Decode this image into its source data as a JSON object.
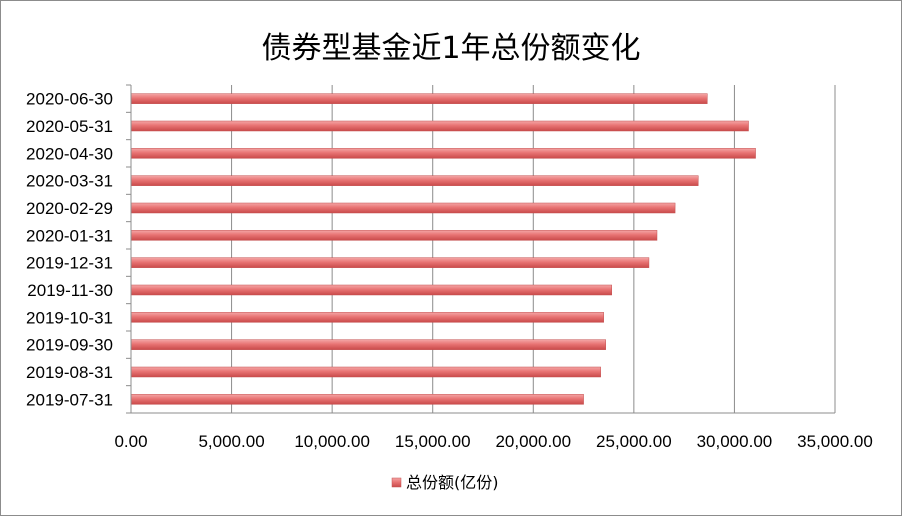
{
  "chart_data": {
    "type": "bar",
    "orientation": "horizontal",
    "title": "债券型基金近1年总份额变化",
    "categories": [
      "2020-06-30",
      "2020-05-31",
      "2020-04-30",
      "2020-03-31",
      "2020-02-29",
      "2020-01-31",
      "2019-12-31",
      "2019-11-30",
      "2019-10-31",
      "2019-09-30",
      "2019-08-31",
      "2019-07-31"
    ],
    "series": [
      {
        "name": "总份额(亿份)",
        "color": "#e06666",
        "values": [
          28650,
          30700,
          31050,
          28200,
          27050,
          26150,
          25750,
          23900,
          23500,
          23600,
          23350,
          22500
        ]
      }
    ],
    "xlim": [
      0,
      35000
    ],
    "xticks": [
      "0.00",
      "5,000.00",
      "10,000.00",
      "15,000.00",
      "20,000.00",
      "25,000.00",
      "30,000.00",
      "35,000.00"
    ],
    "xgrid": true,
    "legend_position": "bottom"
  }
}
